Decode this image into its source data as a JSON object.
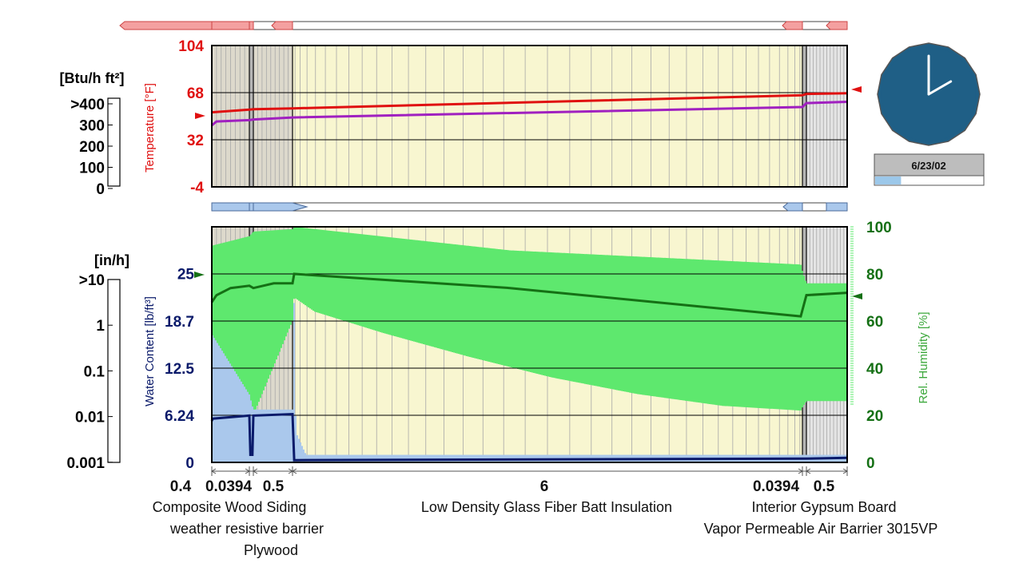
{
  "flux_scale": {
    "unit": "[Btu/h ft²]",
    "ticks": [
      ">400",
      "300",
      "200",
      "100",
      "0"
    ]
  },
  "rain_scale": {
    "unit": "[in/h]",
    "ticks": [
      ">10",
      "1",
      "0.1",
      "0.01",
      "0.001"
    ]
  },
  "temperature_axis": {
    "label": "Temperature [°F]",
    "ticks": [
      "104",
      "68",
      "32",
      "-4"
    ],
    "range": [
      -4,
      104
    ]
  },
  "water_content_axis": {
    "label": "Water Content [lb/ft³]",
    "ticks": [
      "25",
      "18.7",
      "12.5",
      "6.24",
      "0"
    ],
    "range": [
      0,
      31.2
    ]
  },
  "rh_axis": {
    "label": "Rel. Humidity [%]",
    "ticks": [
      "100",
      "80",
      "60",
      "40",
      "20",
      "0"
    ],
    "range": [
      0,
      100
    ]
  },
  "clock": {
    "date": "6/23/02",
    "hour": 2,
    "minute": 0,
    "progress": 0.24,
    "face_color": "#1f5f86",
    "progress_color": "#9cc8ea"
  },
  "layers": {
    "thickness_labels": [
      "0.4",
      "0.0394",
      "0.5",
      "6",
      "0.0394",
      "0.5"
    ],
    "names": [
      "Composite Wood Siding",
      "weather resistive barrier",
      "Plywood",
      "Low Density Glass Fiber Batt Insulation",
      "Interior Gypsum Board",
      "Vapor Permeable Air Barrier 3015VP"
    ]
  },
  "colors": {
    "temperature": "#e01010",
    "dewpoint": "#a020c0",
    "rh_line": "#157015",
    "rh_band": "#5ee86e",
    "water_content": "#0a1a6a",
    "water_band": "#aac8ec",
    "layer_bg": "#f8f6d0",
    "siding_bg": "#ddd9cc",
    "barrier_bg": "#b5b5b5"
  },
  "chart_data": [
    {
      "type": "line",
      "subject": "temperature profile across wall assembly",
      "ylabel": "Temperature [°F]",
      "ylim": [
        -4,
        104
      ],
      "x_units": "inches from exterior face",
      "series": [
        {
          "role": "temperature",
          "x": [
            0.0,
            0.4,
            0.44,
            0.94,
            6.94,
            6.98,
            7.48
          ],
          "y": [
            53,
            55,
            55.4,
            56,
            66,
            67,
            67.5
          ]
        },
        {
          "role": "dew point",
          "x": [
            0.0,
            0.05,
            0.4,
            0.44,
            0.94,
            6.94,
            6.98,
            7.48
          ],
          "y": [
            43,
            46,
            47,
            47.5,
            49,
            57,
            60,
            61
          ]
        }
      ]
    },
    {
      "type": "line",
      "subject": "relative humidity and water content across wall assembly",
      "ylabel_left": "Water Content [lb/ft³]",
      "ylabel_right": "Rel. Humidity [%]",
      "ylim_left": [
        0,
        31.2
      ],
      "ylim_right": [
        0,
        100
      ],
      "x_units": "inches from exterior face",
      "series": [
        {
          "role": "relative humidity",
          "x": [
            0.0,
            0.05,
            0.2,
            0.4,
            0.44,
            0.7,
            0.94,
            0.96,
            3.5,
            6.92,
            6.98,
            7.48
          ],
          "y": [
            68,
            71,
            74,
            75,
            74,
            76,
            76,
            80,
            74,
            62,
            71,
            72
          ]
        },
        {
          "role": "rh band upper",
          "x": [
            0.0,
            0.4,
            0.44,
            0.94,
            0.96,
            3.5,
            6.92,
            6.98,
            7.48
          ],
          "y": [
            92,
            96,
            98,
            99,
            100,
            90,
            84,
            76,
            76
          ]
        },
        {
          "role": "rh band lower",
          "x": [
            0.0,
            0.4,
            0.44,
            0.94,
            0.96,
            1.2,
            2.0,
            3.0,
            4.0,
            5.0,
            6.0,
            6.92,
            6.98,
            7.48
          ],
          "y": [
            20,
            22,
            20,
            60,
            70,
            64,
            55,
            45,
            36,
            29,
            24,
            22,
            26,
            26
          ]
        },
        {
          "role": "water content",
          "x": [
            0.0,
            0.01,
            0.4,
            0.41,
            0.43,
            0.44,
            0.94,
            0.96,
            6.98,
            7.48
          ],
          "y": [
            5.5,
            5.8,
            6.2,
            1.0,
            1.0,
            6.2,
            6.4,
            0.3,
            0.5,
            0.6
          ]
        },
        {
          "role": "water band upper",
          "x": [
            0.0,
            0.4,
            0.44,
            0.94,
            0.96,
            0.98,
            1.1,
            6.98,
            7.48
          ],
          "y": [
            17,
            9,
            7,
            7,
            22,
            4,
            1,
            1,
            1
          ]
        }
      ]
    }
  ]
}
